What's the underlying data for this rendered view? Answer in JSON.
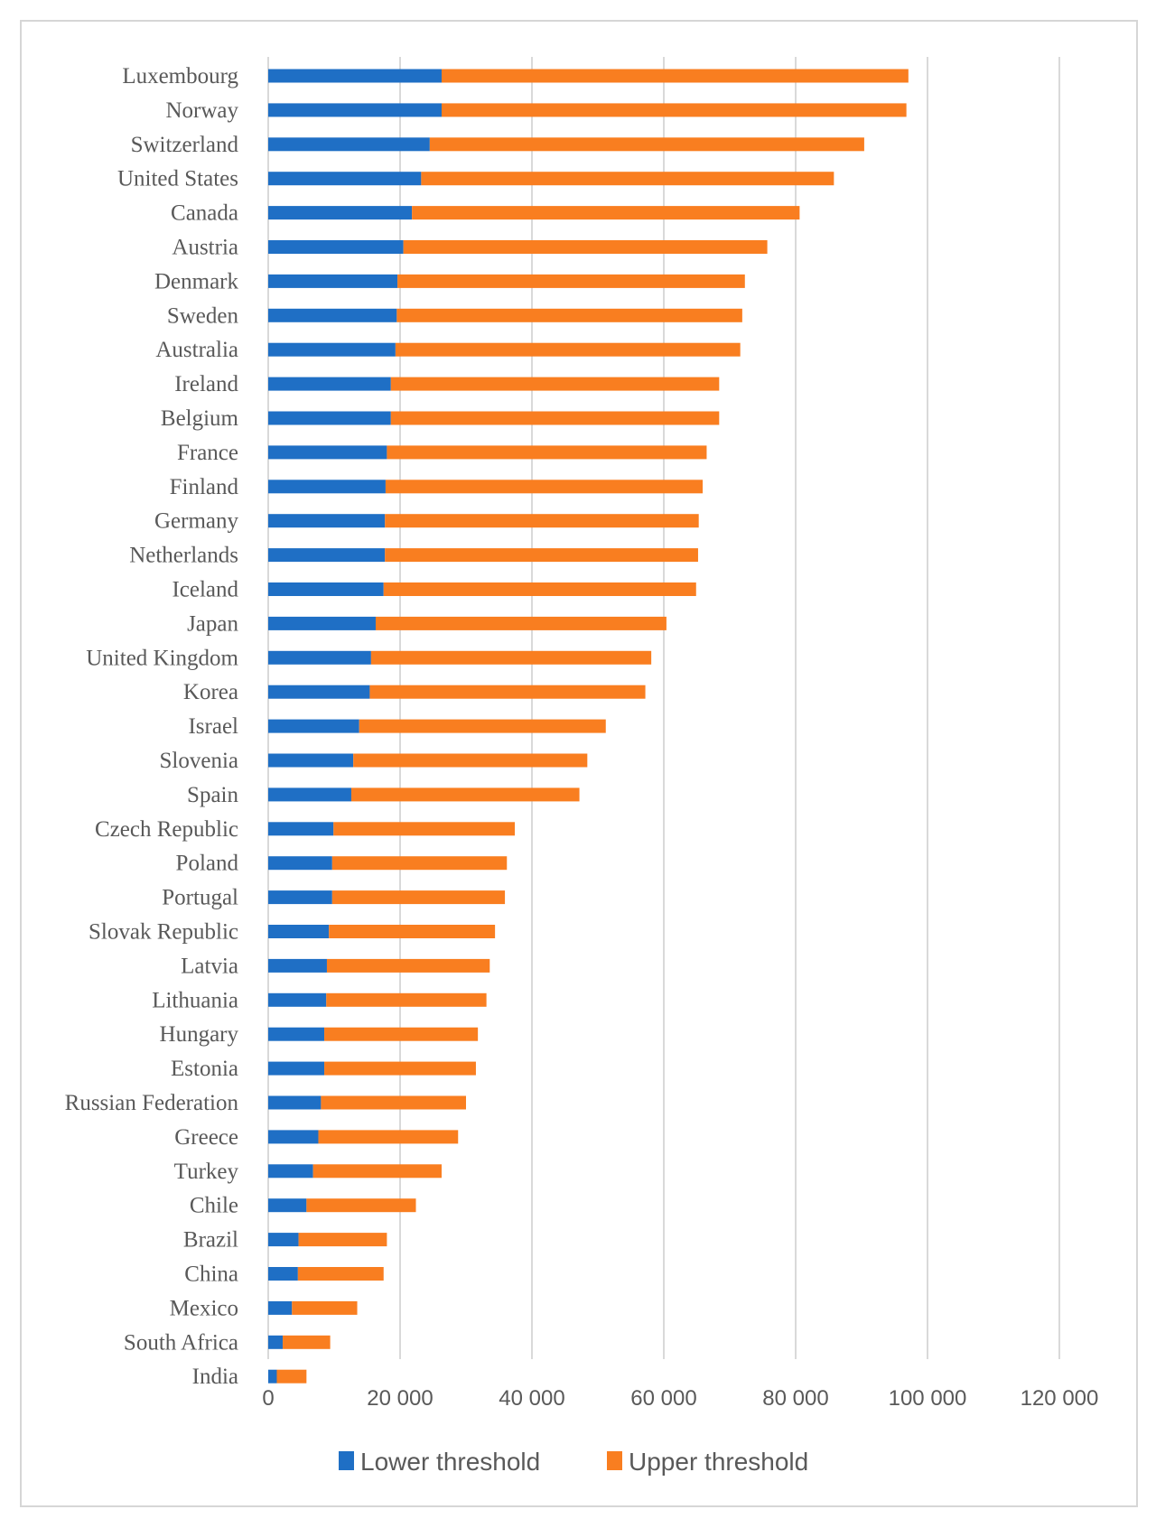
{
  "chart_data": {
    "type": "bar",
    "orientation": "horizontal",
    "stacked": true,
    "title": "",
    "xlabel": "",
    "ylabel": "",
    "xlim": [
      0,
      120000
    ],
    "x_ticks": [
      "0",
      "20 000",
      "40 000",
      "60 000",
      "80 000",
      "100 000",
      "120 000"
    ],
    "grid": "vertical",
    "legend": "bottom",
    "categories": [
      "Luxembourg",
      "Norway",
      "Switzerland",
      "United States",
      "Canada",
      "Austria",
      "Denmark",
      "Sweden",
      "Australia",
      "Ireland",
      "Belgium",
      "France",
      "Finland",
      "Germany",
      "Netherlands",
      "Iceland",
      "Japan",
      "United Kingdom",
      "Korea",
      "Israel",
      "Slovenia",
      "Spain",
      "Czech Republic",
      "Poland",
      "Portugal",
      "Slovak Republic",
      "Latvia",
      "Lithuania",
      "Hungary",
      "Estonia",
      "Russian Federation",
      "Greece",
      "Turkey",
      "Chile",
      "Brazil",
      "China",
      "Mexico",
      "South Africa",
      "India"
    ],
    "series": [
      {
        "name": "Lower threshold",
        "color": "#1f6fc5",
        "values": [
          26300,
          26300,
          24500,
          23200,
          21800,
          20500,
          19600,
          19500,
          19300,
          18600,
          18600,
          18000,
          17800,
          17700,
          17700,
          17500,
          16300,
          15600,
          15400,
          13800,
          12900,
          12600,
          9900,
          9700,
          9700,
          9200,
          8900,
          8800,
          8500,
          8500,
          8000,
          7600,
          6800,
          5800,
          4600,
          4500,
          3600,
          2200,
          1300
        ]
      },
      {
        "name": "Upper threshold",
        "color": "#f97e20",
        "values": [
          70800,
          70500,
          65900,
          62600,
          58800,
          55200,
          52700,
          52400,
          52300,
          49800,
          49800,
          48500,
          48100,
          47600,
          47500,
          47400,
          44100,
          42500,
          41800,
          37400,
          35500,
          34600,
          27500,
          26500,
          26200,
          25200,
          24700,
          24300,
          23300,
          23000,
          22000,
          21200,
          19500,
          16600,
          13400,
          13000,
          9900,
          7200,
          4500
        ]
      }
    ]
  }
}
